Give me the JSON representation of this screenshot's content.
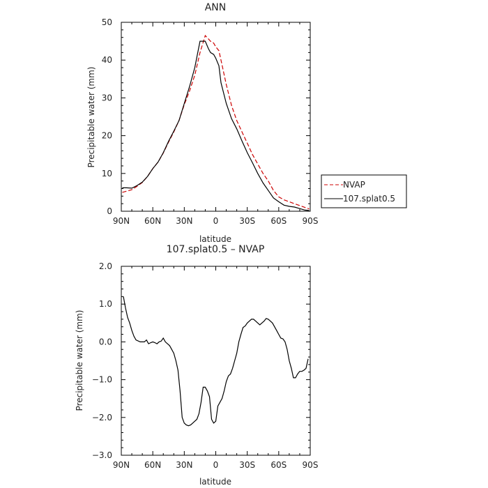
{
  "chart_data": [
    {
      "type": "line",
      "title": "ANN",
      "xlabel": "latitude",
      "ylabel": "Precipitable water (mm)",
      "xlim": [
        90,
        -90
      ],
      "ylim": [
        0,
        50
      ],
      "xticks": [
        90,
        60,
        30,
        0,
        -30,
        -60,
        -90
      ],
      "xtick_labels": [
        "90N",
        "60N",
        "30N",
        "0",
        "30S",
        "60S",
        "90S"
      ],
      "yticks": [
        0,
        10,
        20,
        30,
        40,
        50
      ],
      "ytick_labels": [
        "0",
        "10",
        "20",
        "30",
        "40",
        "50"
      ],
      "legend_position": "right",
      "series": [
        {
          "name": "NVAP",
          "color": "#cc0000",
          "dash": "dashed",
          "x": [
            89,
            85,
            80,
            75,
            70,
            65,
            60,
            55,
            50,
            45,
            40,
            35,
            30,
            25,
            20,
            15,
            10,
            5,
            2,
            0,
            -3,
            -5,
            -10,
            -15,
            -20,
            -25,
            -30,
            -35,
            -40,
            -45,
            -50,
            -55,
            -60,
            -65,
            -70,
            -75,
            -80,
            -85,
            -89
          ],
          "y": [
            5.0,
            5.3,
            5.7,
            6.6,
            7.6,
            9.2,
            11.3,
            13.0,
            15.4,
            18.3,
            21.0,
            24.0,
            28.2,
            31.8,
            36.0,
            42.0,
            46.5,
            45.0,
            44.5,
            43.5,
            42.5,
            40.0,
            33.5,
            28.0,
            24.0,
            21.0,
            18.0,
            15.0,
            12.5,
            10.0,
            8.0,
            5.5,
            3.8,
            3.0,
            2.5,
            2.0,
            1.5,
            1.0,
            0.6
          ]
        },
        {
          "name": "107.splat0.5",
          "color": "#000000",
          "dash": "solid",
          "x": [
            89,
            85,
            80,
            75,
            70,
            65,
            60,
            55,
            50,
            45,
            40,
            35,
            30,
            25,
            20,
            15,
            10,
            7,
            5,
            2,
            0,
            -3,
            -5,
            -10,
            -15,
            -20,
            -25,
            -30,
            -35,
            -40,
            -45,
            -50,
            -55,
            -60,
            -65,
            -70,
            -75,
            -80,
            -85,
            -89
          ],
          "y": [
            6.2,
            6.2,
            6.1,
            6.8,
            7.7,
            9.2,
            11.3,
            13.0,
            15.5,
            18.5,
            21.2,
            24.0,
            28.5,
            33.0,
            38.0,
            45.0,
            45.0,
            43.0,
            42.0,
            41.5,
            40.5,
            38.5,
            34.0,
            28.5,
            24.5,
            21.8,
            18.6,
            15.5,
            12.8,
            10.0,
            7.5,
            5.5,
            3.5,
            2.5,
            1.6,
            1.3,
            1.1,
            0.7,
            0.3,
            0.2
          ]
        }
      ]
    },
    {
      "type": "line",
      "title": "107.splat0.5 – NVAP",
      "xlabel": "latitude",
      "ylabel": "Precipitable water (mm)",
      "xlim": [
        90,
        -90
      ],
      "ylim": [
        -3.0,
        2.0
      ],
      "xticks": [
        90,
        60,
        30,
        0,
        -30,
        -60,
        -90
      ],
      "xtick_labels": [
        "90N",
        "60N",
        "30N",
        "0",
        "30S",
        "60S",
        "90S"
      ],
      "yticks": [
        -3,
        -2,
        -1,
        0,
        1,
        2
      ],
      "ytick_labels": [
        "−3.0",
        "−2.0",
        "−1.0",
        "0.0",
        "1.0",
        "2.0"
      ],
      "series": [
        {
          "color": "#000000",
          "dash": "solid",
          "x": [
            88,
            86,
            84,
            82,
            80,
            78,
            76,
            72,
            68,
            66,
            64,
            62,
            60,
            58,
            56,
            54,
            52,
            50,
            48,
            46,
            44,
            42,
            40,
            38,
            36,
            34,
            32,
            30,
            28,
            26,
            24,
            22,
            20,
            18,
            16,
            14,
            12,
            10,
            8,
            6,
            4,
            2,
            0,
            -2,
            -4,
            -6,
            -8,
            -10,
            -12,
            -14,
            -16,
            -18,
            -20,
            -22,
            -24,
            -26,
            -28,
            -30,
            -32,
            -34,
            -36,
            -38,
            -40,
            -42,
            -44,
            -46,
            -48,
            -50,
            -52,
            -54,
            -56,
            -58,
            -60,
            -62,
            -64,
            -66,
            -68,
            -70,
            -72,
            -74,
            -76,
            -78,
            -80,
            -82,
            -84,
            -86,
            -88
          ],
          "y": [
            1.2,
            0.9,
            0.65,
            0.5,
            0.3,
            0.15,
            0.05,
            0.0,
            0.0,
            0.05,
            -0.05,
            -0.02,
            0.0,
            -0.02,
            -0.05,
            0.0,
            0.02,
            0.1,
            0.0,
            -0.05,
            -0.1,
            -0.2,
            -0.3,
            -0.5,
            -0.75,
            -1.3,
            -2.0,
            -2.15,
            -2.2,
            -2.22,
            -2.2,
            -2.15,
            -2.1,
            -2.05,
            -1.9,
            -1.6,
            -1.2,
            -1.2,
            -1.3,
            -1.45,
            -2.05,
            -2.15,
            -2.1,
            -1.7,
            -1.6,
            -1.5,
            -1.3,
            -1.05,
            -0.9,
            -0.85,
            -0.7,
            -0.5,
            -0.3,
            0.0,
            0.2,
            0.38,
            0.42,
            0.5,
            0.55,
            0.6,
            0.6,
            0.55,
            0.5,
            0.45,
            0.5,
            0.55,
            0.62,
            0.6,
            0.55,
            0.5,
            0.4,
            0.3,
            0.2,
            0.1,
            0.08,
            0.0,
            -0.2,
            -0.5,
            -0.7,
            -0.95,
            -0.95,
            -0.85,
            -0.78,
            -0.78,
            -0.75,
            -0.7,
            -0.45
          ]
        }
      ]
    }
  ]
}
